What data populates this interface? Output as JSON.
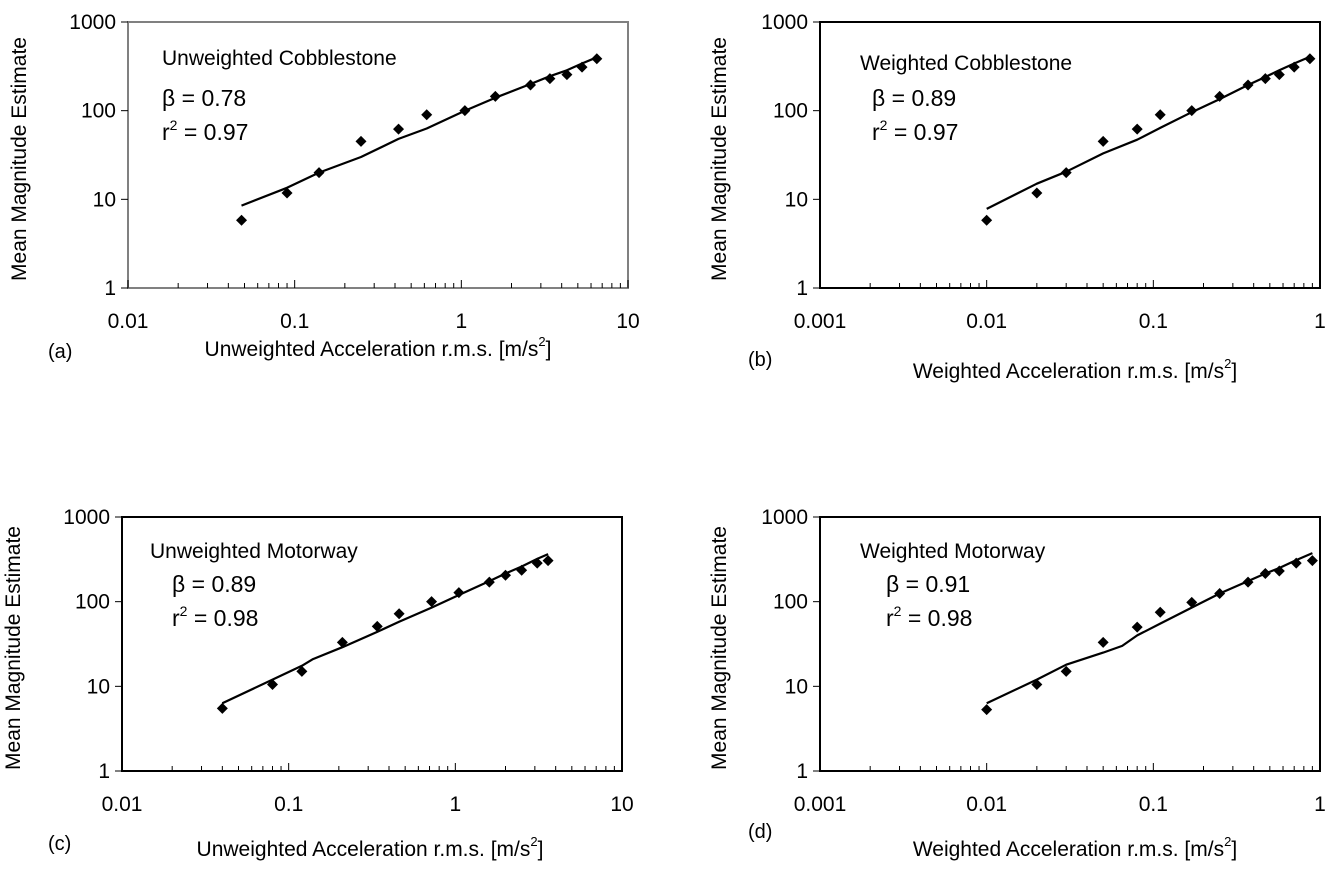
{
  "chart_data": [
    {
      "panel": "(a)",
      "type": "scatter",
      "title": "Unweighted Cobblestone",
      "xlabel": "Unweighted Acceleration r.m.s. [m/s",
      "xlabel_sup": "2",
      "xlabel_end": "]",
      "ylabel": "Mean Magnitude Estimate",
      "xscale": "log",
      "yscale": "log",
      "xlim": [
        0.01,
        10
      ],
      "ylim": [
        1,
        1000
      ],
      "xticks": [
        "0.01",
        "0.1",
        "1",
        "10"
      ],
      "yticks": [
        "1",
        "10",
        "100",
        "1000"
      ],
      "beta": "β = 0.78",
      "r2_prefix": "r",
      "r2_sup": "2",
      "r2_value": " = 0.97",
      "points": [
        [
          0.048,
          5.8
        ],
        [
          0.09,
          11.8
        ],
        [
          0.14,
          20
        ],
        [
          0.25,
          45
        ],
        [
          0.42,
          62
        ],
        [
          0.62,
          90
        ],
        [
          1.05,
          100
        ],
        [
          1.6,
          145
        ],
        [
          2.6,
          195
        ],
        [
          3.4,
          230
        ],
        [
          4.3,
          255
        ],
        [
          5.3,
          310
        ],
        [
          6.5,
          385
        ]
      ],
      "fit": [
        [
          0.048,
          8.5
        ],
        [
          0.09,
          13.5
        ],
        [
          0.14,
          20
        ],
        [
          0.25,
          30
        ],
        [
          0.42,
          48
        ],
        [
          0.62,
          63
        ],
        [
          1.05,
          100
        ],
        [
          1.6,
          140
        ],
        [
          2.6,
          200
        ],
        [
          3.4,
          245
        ],
        [
          4.3,
          285
        ],
        [
          5.3,
          340
        ],
        [
          6.5,
          400
        ]
      ]
    },
    {
      "panel": "(b)",
      "type": "scatter",
      "title": "Weighted Cobblestone",
      "xlabel": "Weighted Acceleration r.m.s. [m/s",
      "xlabel_sup": "2",
      "xlabel_end": "]",
      "ylabel": "Mean Magnitude Estimate",
      "xscale": "log",
      "yscale": "log",
      "xlim": [
        0.001,
        1
      ],
      "ylim": [
        1,
        1000
      ],
      "xticks": [
        "0.001",
        "0.01",
        "0.1",
        "1"
      ],
      "yticks": [
        "1",
        "10",
        "100",
        "1000"
      ],
      "beta": "β = 0.89",
      "r2_prefix": "r",
      "r2_sup": "2",
      "r2_value": " = 0.97",
      "points": [
        [
          0.01,
          5.8
        ],
        [
          0.02,
          11.8
        ],
        [
          0.03,
          20
        ],
        [
          0.05,
          45
        ],
        [
          0.08,
          62
        ],
        [
          0.11,
          90
        ],
        [
          0.17,
          100
        ],
        [
          0.25,
          145
        ],
        [
          0.37,
          195
        ],
        [
          0.47,
          230
        ],
        [
          0.57,
          255
        ],
        [
          0.7,
          310
        ],
        [
          0.87,
          385
        ]
      ],
      "fit": [
        [
          0.01,
          7.8
        ],
        [
          0.02,
          15
        ],
        [
          0.03,
          20.5
        ],
        [
          0.05,
          33
        ],
        [
          0.08,
          47
        ],
        [
          0.11,
          64
        ],
        [
          0.17,
          96
        ],
        [
          0.25,
          135
        ],
        [
          0.37,
          195
        ],
        [
          0.47,
          240
        ],
        [
          0.57,
          285
        ],
        [
          0.7,
          340
        ],
        [
          0.87,
          405
        ]
      ]
    },
    {
      "panel": "(c)",
      "type": "scatter",
      "title": "Unweighted Motorway",
      "xlabel": "Unweighted Acceleration r.m.s. [m/s",
      "xlabel_sup": "2",
      "xlabel_end": "]",
      "ylabel": "Mean Magnitude Estimate",
      "xscale": "log",
      "yscale": "log",
      "xlim": [
        0.01,
        10
      ],
      "ylim": [
        1,
        1000
      ],
      "xticks": [
        "0.01",
        "0.1",
        "1",
        "10"
      ],
      "yticks": [
        "1",
        "10",
        "100",
        "1000"
      ],
      "beta": "β = 0.89",
      "r2_prefix": "r",
      "r2_sup": "2",
      "r2_value": " = 0.98",
      "points": [
        [
          0.04,
          5.5
        ],
        [
          0.08,
          10.5
        ],
        [
          0.12,
          15
        ],
        [
          0.21,
          33
        ],
        [
          0.34,
          51
        ],
        [
          0.46,
          72
        ],
        [
          0.72,
          100
        ],
        [
          1.05,
          128
        ],
        [
          1.6,
          170
        ],
        [
          2.0,
          205
        ],
        [
          2.5,
          235
        ],
        [
          3.1,
          285
        ],
        [
          3.6,
          305
        ]
      ],
      "fit": [
        [
          0.04,
          6.3
        ],
        [
          0.08,
          12
        ],
        [
          0.12,
          17.5
        ],
        [
          0.14,
          21
        ],
        [
          0.21,
          29
        ],
        [
          0.34,
          44
        ],
        [
          0.46,
          58
        ],
        [
          0.72,
          85
        ],
        [
          1.05,
          120
        ],
        [
          1.6,
          175
        ],
        [
          2.0,
          215
        ],
        [
          2.5,
          260
        ],
        [
          3.1,
          320
        ],
        [
          3.6,
          365
        ]
      ]
    },
    {
      "panel": "(d)",
      "type": "scatter",
      "title": "Weighted Motorway",
      "xlabel": "Weighted Acceleration r.m.s. [m/s",
      "xlabel_sup": "2",
      "xlabel_end": "]",
      "ylabel": "Mean Magnitude Estimate",
      "xscale": "log",
      "yscale": "log",
      "xlim": [
        0.001,
        1
      ],
      "ylim": [
        1,
        1000
      ],
      "xticks": [
        "0.001",
        "0.01",
        "0.1",
        "1"
      ],
      "yticks": [
        "1",
        "10",
        "100",
        "1000"
      ],
      "beta": "β = 0.91",
      "r2_prefix": "r",
      "r2_sup": "2",
      "r2_value": " = 0.98",
      "points": [
        [
          0.01,
          5.3
        ],
        [
          0.02,
          10.5
        ],
        [
          0.03,
          15
        ],
        [
          0.05,
          33
        ],
        [
          0.08,
          50
        ],
        [
          0.11,
          75
        ],
        [
          0.17,
          98
        ],
        [
          0.25,
          125
        ],
        [
          0.37,
          170
        ],
        [
          0.47,
          215
        ],
        [
          0.57,
          230
        ],
        [
          0.72,
          285
        ],
        [
          0.9,
          305
        ]
      ],
      "fit": [
        [
          0.01,
          6.3
        ],
        [
          0.02,
          12
        ],
        [
          0.03,
          18
        ],
        [
          0.05,
          25
        ],
        [
          0.065,
          30
        ],
        [
          0.08,
          40
        ],
        [
          0.11,
          55
        ],
        [
          0.17,
          85
        ],
        [
          0.25,
          125
        ],
        [
          0.37,
          175
        ],
        [
          0.47,
          215
        ],
        [
          0.57,
          250
        ],
        [
          0.72,
          310
        ],
        [
          0.9,
          375
        ]
      ]
    }
  ],
  "panel_labels": [
    "(a)",
    "(b)",
    "(c)",
    "(d)"
  ],
  "colors": {
    "ink": "#000000",
    "frame_a": "#808080",
    "frame": "#000000",
    "background": "#ffffff"
  }
}
